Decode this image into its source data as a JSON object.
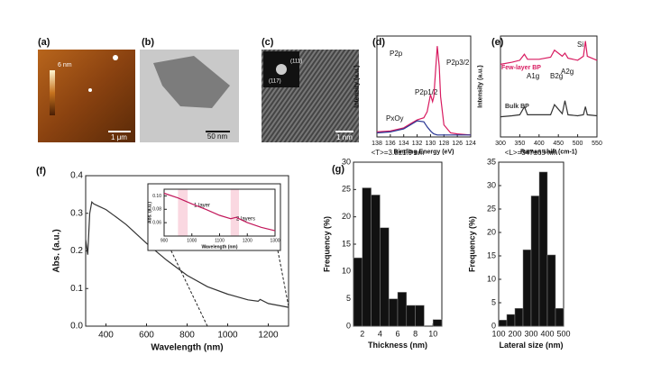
{
  "images": [
    {
      "panel": "(a)",
      "scale_bar": "1 μm",
      "colorbar": "6 nm"
    },
    {
      "panel": "(b)",
      "scale_bar": "50 nm"
    },
    {
      "panel": "(c)",
      "scale_bar": "1 nm",
      "spots": [
        "(111)",
        "(117)"
      ]
    }
  ],
  "chart_data": [
    {
      "type": "line",
      "panel_label": "(f)",
      "xlabel": "Wavelength (nm)",
      "ylabel": "Abs. (a.u.)",
      "xlim": [
        300,
        1300
      ],
      "ylim": [
        0,
        0.4
      ],
      "xticks": [
        400,
        600,
        800,
        1000,
        1200
      ],
      "yticks": [
        {
          "value": 0,
          "label": "0.0"
        },
        0.1,
        0.2,
        0.3,
        0.4
      ],
      "x": [
        300,
        310,
        320,
        330,
        340,
        360,
        400,
        450,
        500,
        600,
        700,
        800,
        900,
        1000,
        1100,
        1150,
        1160,
        1200,
        1250,
        1300
      ],
      "series": [
        {
          "color": "#333333",
          "values": [
            0.23,
            0.19,
            0.3,
            0.33,
            0.325,
            0.32,
            0.31,
            0.29,
            0.27,
            0.22,
            0.175,
            0.135,
            0.105,
            0.085,
            0.07,
            0.066,
            0.071,
            0.06,
            0.055,
            0.05
          ]
        }
      ]
    },
    {
      "type": "line",
      "xlabel": "Wavelength (nm)",
      "ylabel": "Abs. (a.u.)",
      "xlim": [
        900,
        1300
      ],
      "ylim": [
        0.04,
        0.11
      ],
      "xticks": [
        900,
        1000,
        1100,
        1200,
        1300
      ],
      "yticks": [
        0.06,
        0.08,
        {
          "value": 0.1,
          "label": "0.10"
        }
      ],
      "highlights": [
        [
          950,
          985
        ],
        [
          1140,
          1170
        ]
      ],
      "annotations": [
        "1 layer",
        "2 layers"
      ],
      "x": [
        900,
        950,
        1000,
        1050,
        1100,
        1140,
        1160,
        1180,
        1200,
        1250,
        1300
      ],
      "series": [
        {
          "color": "#c2185b",
          "values": [
            0.104,
            0.097,
            0.088,
            0.08,
            0.071,
            0.066,
            0.068,
            0.064,
            0.06,
            0.053,
            0.048
          ]
        }
      ]
    },
    {
      "type": "histogram",
      "panel_label": "(g)",
      "title": "<T>=3.8±1.9 nm",
      "xlabel": "Thickness (nm)",
      "ylabel": "Frequency (%)",
      "xlim": [
        1,
        11
      ],
      "ylim": [
        0,
        30
      ],
      "xticks": [
        2,
        4,
        6,
        8,
        10
      ],
      "yticks": [
        0,
        5,
        10,
        15,
        20,
        25,
        30
      ],
      "color": "#111111",
      "bins": [
        1,
        2,
        3,
        4,
        5,
        6,
        7,
        8,
        9,
        10,
        11
      ],
      "values": [
        12.5,
        25.3,
        24,
        18,
        5,
        6.2,
        3.8,
        3.8,
        0,
        1.2
      ]
    },
    {
      "type": "histogram",
      "title": "<L>=347±65 nm",
      "xlabel": "Lateral size (nm)",
      "ylabel": "Frequency (%)",
      "xlim": [
        100,
        500
      ],
      "ylim": [
        0,
        35
      ],
      "xticks": [
        100,
        200,
        300,
        400,
        500
      ],
      "yticks": [
        0,
        5,
        10,
        15,
        20,
        25,
        30,
        35
      ],
      "color": "#111111",
      "bins": [
        100,
        150,
        200,
        250,
        300,
        350,
        400,
        450,
        500
      ],
      "values": [
        1.3,
        2.5,
        3.8,
        16.3,
        27.8,
        32.9,
        15.2,
        3.8
      ]
    },
    {
      "type": "line",
      "panel_label": "(d)",
      "xlabel": "Binding Energy (eV)",
      "ylabel": "Intensity (a.u.)",
      "xlim": [
        138,
        124
      ],
      "ylim": [
        0,
        1
      ],
      "xticks": [
        138,
        136,
        134,
        132,
        130,
        128,
        126,
        124
      ],
      "annotations": [
        "P2p",
        "P2p1/2",
        "P2p3/2",
        "PxOy"
      ],
      "x": [
        138,
        136,
        134,
        133,
        132,
        131,
        130.5,
        130,
        129.7,
        129.5,
        129,
        128.7,
        128.5,
        128,
        127,
        126,
        124
      ],
      "series": [
        {
          "color": "#d81b60",
          "values": [
            0.05,
            0.06,
            0.09,
            0.13,
            0.17,
            0.19,
            0.25,
            0.42,
            0.35,
            0.4,
            0.9,
            0.7,
            0.4,
            0.12,
            0.04,
            0.03,
            0.02
          ]
        },
        {
          "color": "#283593",
          "values": [
            0.04,
            0.05,
            0.08,
            0.12,
            0.16,
            0.15,
            0.1,
            0.06,
            0.04,
            0.03,
            0.02,
            0.02,
            0.02,
            0.02,
            0.02,
            0.02,
            0.02
          ]
        }
      ]
    },
    {
      "type": "line",
      "panel_label": "(e)",
      "xlabel": "Raman shift (cm-1)",
      "ylabel": "Intensity (a.u.)",
      "xlim": [
        300,
        550
      ],
      "ylim": [
        0,
        1
      ],
      "xticks": [
        300,
        350,
        400,
        450,
        500,
        550
      ],
      "annotations": [
        "A1g",
        "B2g",
        "A2g",
        "Si"
      ],
      "x": [
        300,
        330,
        350,
        362,
        370,
        400,
        430,
        440,
        460,
        467,
        475,
        500,
        515,
        520,
        525,
        550
      ],
      "series": [
        {
          "name": "Few-layer BP",
          "color": "#d81b60",
          "values": [
            0.72,
            0.74,
            0.76,
            0.82,
            0.77,
            0.77,
            0.79,
            0.86,
            0.8,
            0.83,
            0.78,
            0.76,
            0.8,
            0.95,
            0.8,
            0.76
          ]
        },
        {
          "name": "Bulk BP",
          "color": "#333333",
          "values": [
            0.2,
            0.21,
            0.22,
            0.3,
            0.22,
            0.22,
            0.22,
            0.32,
            0.23,
            0.36,
            0.22,
            0.21,
            0.22,
            0.3,
            0.22,
            0.21
          ]
        }
      ]
    }
  ]
}
